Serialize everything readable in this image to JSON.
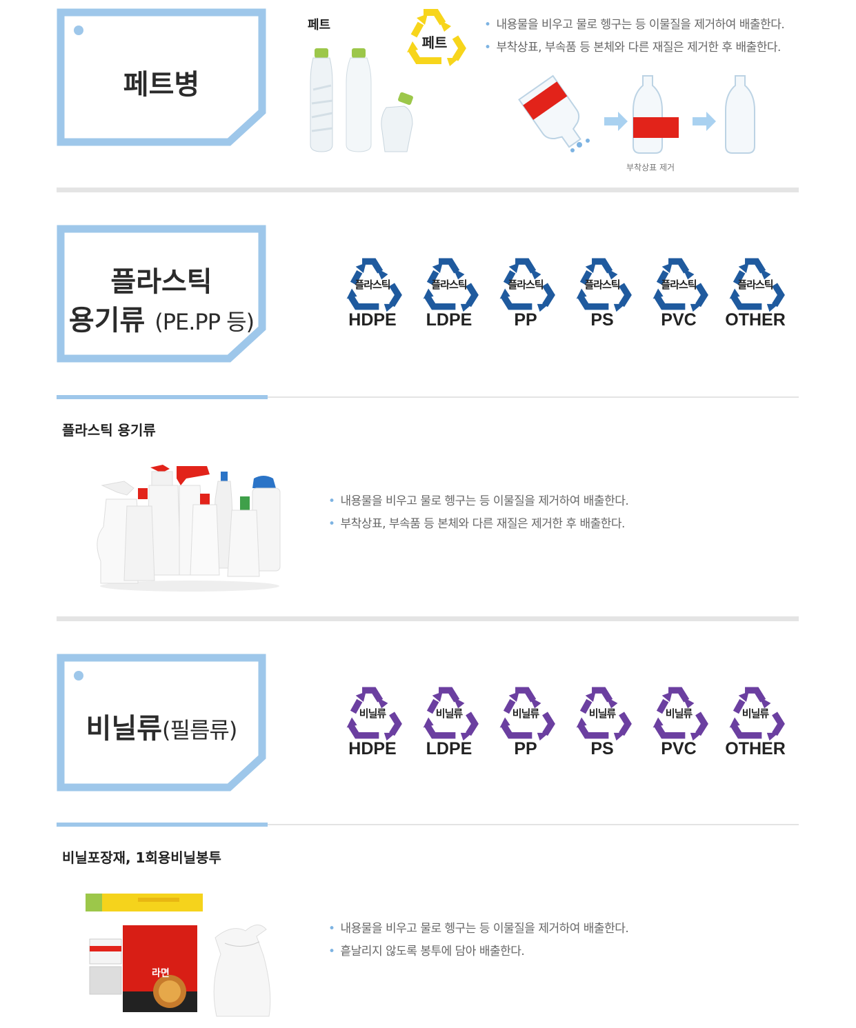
{
  "pet": {
    "title": "페트병",
    "photo_label": "페트",
    "symbol_text": "페트",
    "bullets": [
      "내용물을 비우고 물로 헹구는 등 이물질을 제거하여 배출한다.",
      "부착상표, 부속품 등 본체와 다른 재질은 제거한 후 배출한다."
    ],
    "step_caption": "부착상표 제거"
  },
  "plastic": {
    "title_line1": "플라스틱",
    "title_line2": "용기류",
    "title_sub": "(PE.PP 등)",
    "symbol_text": "플라스틱",
    "symbol_color": "#1f5a9e",
    "codes": [
      "HDPE",
      "LDPE",
      "PP",
      "PS",
      "PVC",
      "OTHER"
    ],
    "subhead": "플라스틱 용기류",
    "bullets": [
      "내용물을 비우고 물로 헹구는 등 이물질을 제거하여 배출한다.",
      "부착상표, 부속품 등 본체와 다른 재질은 제거한 후 배출한다."
    ]
  },
  "vinyl": {
    "title": "비닐류",
    "title_sub": "(필름류)",
    "symbol_text": "비닐류",
    "symbol_color": "#6b3fa0",
    "codes": [
      "HDPE",
      "LDPE",
      "PP",
      "PS",
      "PVC",
      "OTHER"
    ],
    "subhead": "비닐포장재, 1회용비닐봉투",
    "bullets": [
      "내용물을 비우고 물로 헹구는 등 이물질을 제거하여 배출한다.",
      "흩날리지 않도록 봉투에 담아 배출한다."
    ],
    "ramen_label": "라면"
  },
  "colors": {
    "frame": "#9ec7ea",
    "bullet": "#7db3e2",
    "pet_symbol": "#f7d51b"
  }
}
